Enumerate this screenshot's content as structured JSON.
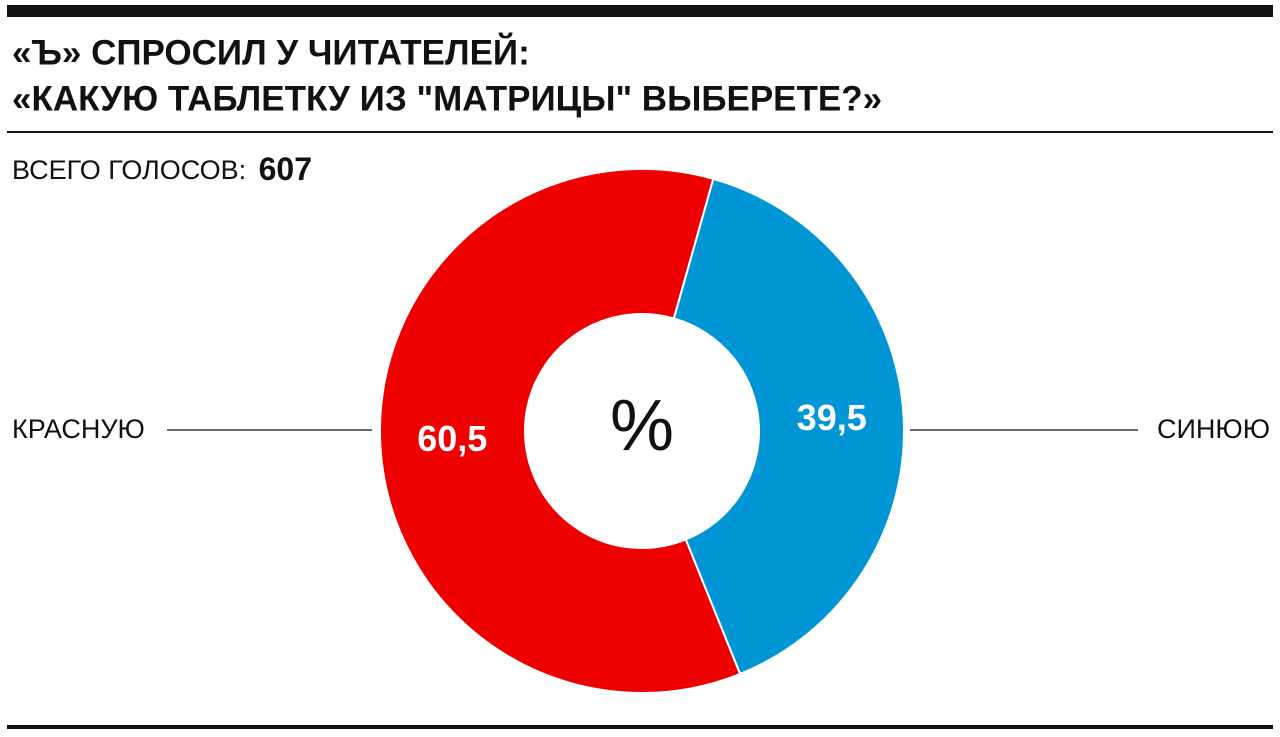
{
  "chart_data": {
    "type": "donut",
    "title": [
      "«Ъ» СПРОСИЛ У ЧИТАТЕЛЕЙ:",
      "«КАКУЮ ТАБЛЕТКУ ИЗ \"МАТРИЦЫ\" ВЫБЕРЕТЕ?»"
    ],
    "total_label": "ВСЕГО ГОЛОСОВ:",
    "total": 607,
    "center_label": "%",
    "categories": [
      "КРАСНУЮ",
      "СИНЮЮ"
    ],
    "values": [
      60.5,
      39.5
    ],
    "value_labels": [
      "60,5",
      "39,5"
    ],
    "colors": [
      "#ee0000",
      "#0096d6"
    ]
  }
}
